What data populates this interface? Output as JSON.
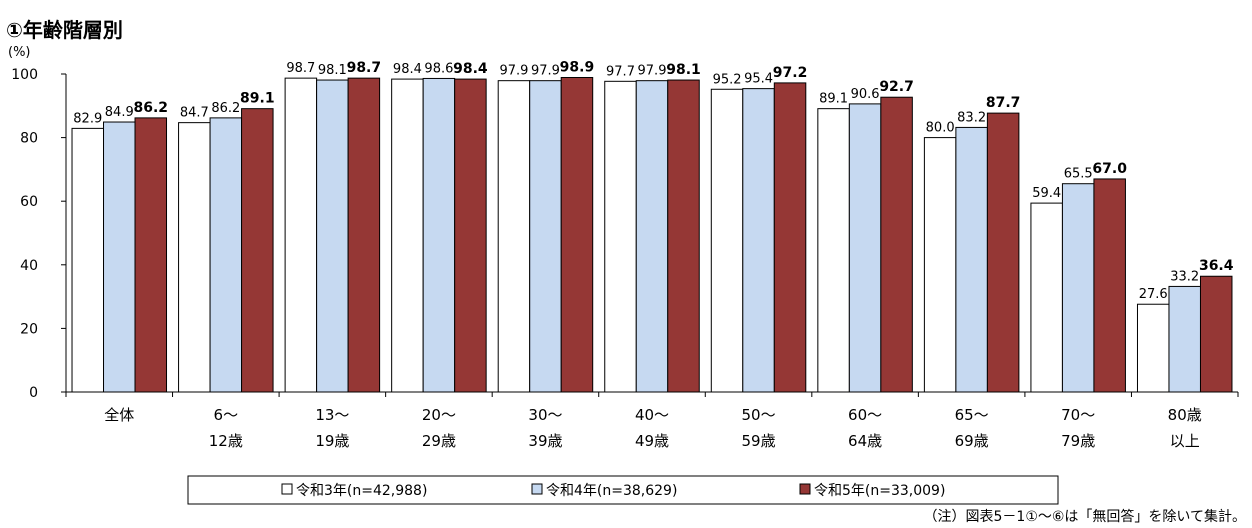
{
  "title": "①年齢階層別",
  "footnote": "（注）図表5－1①～⑥は「無回答」を除いて集計。",
  "chart_data": {
    "type": "bar",
    "ylabel": "(%)",
    "ylim": [
      0,
      100
    ],
    "yticks": [
      0,
      20,
      40,
      60,
      80,
      100
    ],
    "grid": false,
    "legend_position": "bottom",
    "categories": [
      [
        "全体"
      ],
      [
        "6～",
        "12歳"
      ],
      [
        "13～",
        "19歳"
      ],
      [
        "20～",
        "29歳"
      ],
      [
        "30～",
        "39歳"
      ],
      [
        "40～",
        "49歳"
      ],
      [
        "50～",
        "59歳"
      ],
      [
        "60～",
        "64歳"
      ],
      [
        "65～",
        "69歳"
      ],
      [
        "70～",
        "79歳"
      ],
      [
        "80歳",
        "以上"
      ]
    ],
    "series": [
      {
        "name": "令和3年(n=42,988)",
        "color": "#ffffff",
        "values": [
          82.9,
          84.7,
          98.7,
          98.4,
          97.9,
          97.7,
          95.2,
          89.1,
          80.0,
          59.4,
          27.6
        ],
        "labels": [
          "82.9",
          "84.7",
          "98.7",
          "98.4",
          "97.9",
          "97.7",
          "95.2",
          "89.1",
          "80.0",
          "59.4",
          "27.6"
        ],
        "bold_labels": false
      },
      {
        "name": "令和4年(n=38,629)",
        "color": "#c6d9f1",
        "values": [
          84.9,
          86.2,
          98.1,
          98.6,
          97.9,
          97.9,
          95.4,
          90.6,
          83.2,
          65.5,
          33.2
        ],
        "labels": [
          "84.9",
          "86.2",
          "98.1",
          "98.6",
          "97.9",
          "97.9",
          "95.4",
          "90.6",
          "83.2",
          "65.5",
          "33.2"
        ],
        "bold_labels": false
      },
      {
        "name": "令和5年(n=33,009)",
        "color": "#953735",
        "values": [
          86.2,
          89.1,
          98.7,
          98.4,
          98.9,
          98.1,
          97.2,
          92.7,
          87.7,
          67.0,
          36.4
        ],
        "labels": [
          "86.2",
          "89.1",
          "98.7",
          "98.4",
          "98.9",
          "98.1",
          "97.2",
          "92.7",
          "87.7",
          "67.0",
          "36.4"
        ],
        "bold_labels": true
      }
    ]
  }
}
